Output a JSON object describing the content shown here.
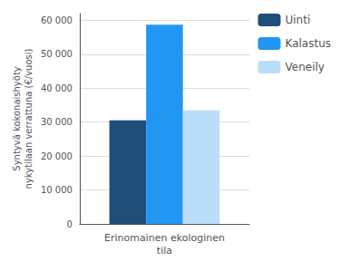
{
  "chart_data": {
    "type": "bar",
    "categories": [
      "Erinomainen ekologinen\ntila"
    ],
    "series": [
      {
        "name": "Uinti",
        "color": "#1F4E79",
        "values": [
          30500
        ]
      },
      {
        "name": "Kalastus",
        "color": "#2196F3",
        "values": [
          58700
        ]
      },
      {
        "name": "Veneily",
        "color": "#BBDEFB",
        "values": [
          33500
        ]
      }
    ],
    "ylabel": "Syntyvä kokonaishyöty\nnykytilaan verrattuna (€/vuosi)",
    "ylim": [
      0,
      62000
    ],
    "yticks": [
      0,
      {
        "value": 10000,
        "label": "10 000"
      },
      {
        "value": 20000,
        "label": "20 000"
      },
      {
        "value": 30000,
        "label": "30 000"
      },
      {
        "value": 40000,
        "label": "40 000"
      },
      {
        "value": 50000,
        "label": "50 000"
      },
      {
        "value": 60000,
        "label": "60 000"
      }
    ],
    "grid": true,
    "legend": "upper right"
  }
}
